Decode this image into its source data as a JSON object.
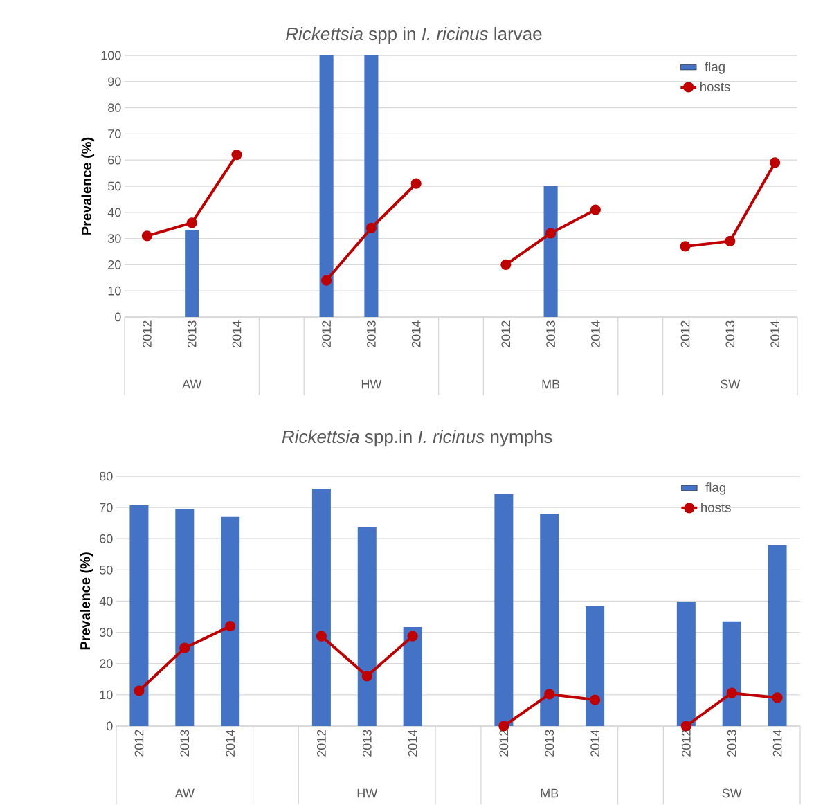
{
  "chart_data": [
    {
      "type": "bar",
      "title": "*Rickettsia* spp in *I. ricinus* larvae",
      "ylabel": "Prevalence (%)",
      "categories": [
        "2012",
        "2013",
        "2014",
        null,
        "2012",
        "2013",
        "2014",
        null,
        "2012",
        "2013",
        "2014",
        null,
        "2012",
        "2013",
        "2014"
      ],
      "annotations": [
        "AW",
        "HW",
        "MB",
        "SW"
      ],
      "ylim": [
        0,
        100
      ],
      "yticks": [
        0,
        10,
        20,
        30,
        40,
        50,
        60,
        70,
        80,
        90,
        100
      ],
      "grid": "y",
      "legend": "top right",
      "marker": "circle",
      "line_style": "solid",
      "series": [
        {
          "name": "flag",
          "color": "#4472c4",
          "values": [
            null,
            33.3,
            null,
            null,
            100,
            100,
            null,
            null,
            null,
            50,
            null,
            null,
            null,
            null,
            null
          ]
        },
        {
          "name": "hosts",
          "type": "line",
          "color": "#c00000",
          "values": [
            31,
            36,
            62,
            null,
            14,
            34,
            51,
            null,
            20,
            32,
            41,
            null,
            27,
            29,
            59
          ]
        }
      ]
    },
    {
      "type": "bar",
      "title": "*Rickettsia* spp.in *I. ricinus* nymphs",
      "ylabel": "Prevalence (%)",
      "categories": [
        "2012",
        "2013",
        "2014",
        null,
        "2012",
        "2013",
        "2014",
        null,
        "2012",
        "2013",
        "2014",
        null,
        "2012",
        "2013",
        "2014"
      ],
      "annotations": [
        "AW",
        "HW",
        "MB",
        "SW"
      ],
      "ylim": [
        0,
        80
      ],
      "yticks": [
        0,
        10,
        20,
        30,
        40,
        50,
        60,
        70,
        80
      ],
      "grid": "y",
      "legend": "top right",
      "marker": "circle",
      "line_style": "solid",
      "series": [
        {
          "name": "flag",
          "color": "#4472c4",
          "values": [
            70.7,
            69.4,
            67,
            null,
            76,
            63.6,
            31.7,
            null,
            74.3,
            68,
            38.4,
            null,
            39.9,
            33.5,
            57.9
          ]
        },
        {
          "name": "hosts",
          "type": "line",
          "color": "#c00000",
          "values": [
            11.3,
            25,
            32,
            null,
            28.8,
            16,
            28.8,
            null,
            0,
            10.2,
            8.4,
            null,
            0,
            10.6,
            9.1
          ]
        }
      ]
    }
  ]
}
